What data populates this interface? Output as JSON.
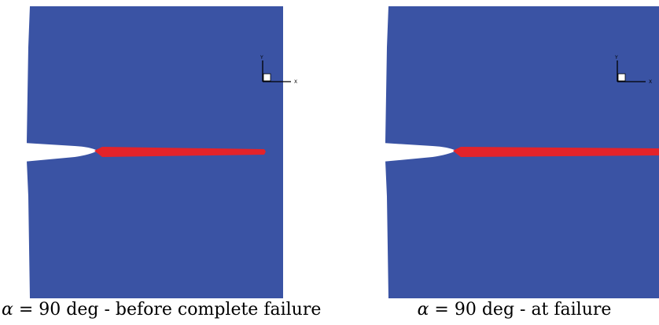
{
  "colors": {
    "mesh": "#3a53a4",
    "crack_damage": "#e3232a",
    "background": "#ffffff",
    "triad": "#000000"
  },
  "panels": [
    {
      "caption_symbol": "α",
      "caption_equals": "= 90 deg - before complete failure",
      "triad": {
        "y_label": "Y",
        "x_label": "X"
      }
    },
    {
      "caption_symbol": "α",
      "caption_equals": "= 90 deg - at failure",
      "triad": {
        "y_label": "Y",
        "x_label": "X"
      }
    }
  ]
}
